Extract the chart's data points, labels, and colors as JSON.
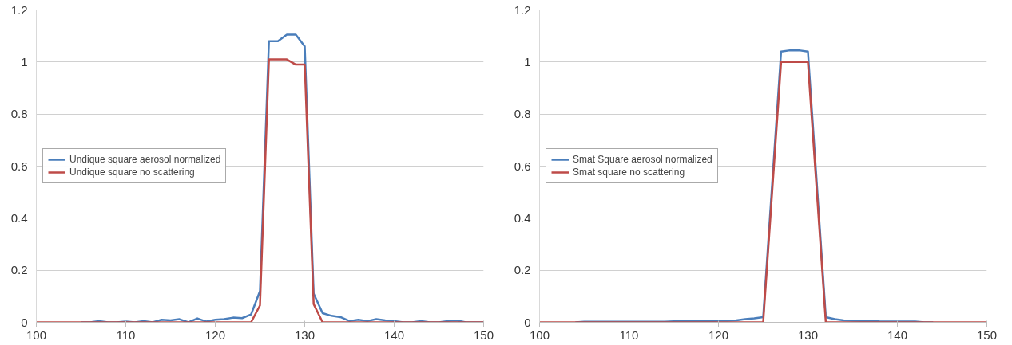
{
  "chart_data": [
    {
      "type": "line",
      "x": [
        100,
        101,
        102,
        103,
        104,
        105,
        106,
        107,
        108,
        109,
        110,
        111,
        112,
        113,
        114,
        115,
        116,
        117,
        118,
        119,
        120,
        121,
        122,
        123,
        124,
        125,
        126,
        127,
        128,
        129,
        130,
        131,
        132,
        133,
        134,
        135,
        136,
        137,
        138,
        139,
        140,
        141,
        142,
        143,
        144,
        145,
        146,
        147,
        148,
        149,
        150
      ],
      "xlim": [
        100,
        150
      ],
      "xticks": [
        100,
        110,
        120,
        130,
        140,
        150
      ],
      "ylim": [
        0,
        1.2
      ],
      "yticks": [
        0,
        0.2,
        0.4,
        0.6,
        0.8,
        1,
        1.2
      ],
      "grid": "y",
      "legend": "left",
      "series": [
        {
          "name": "Undique square aerosol normalized",
          "color": "#4a7ebb",
          "x": [
            105,
            106,
            107,
            108,
            109,
            110,
            111,
            112,
            113,
            114,
            115,
            116,
            117,
            118,
            119,
            120,
            121,
            122,
            123,
            124,
            125,
            126,
            127,
            128,
            129,
            130,
            131,
            132,
            133,
            134,
            135,
            136,
            137,
            138,
            139,
            140,
            141,
            142,
            143,
            144,
            145,
            146,
            147,
            148,
            149,
            150
          ],
          "values": [
            0,
            0,
            0.005,
            0,
            0,
            0.003,
            0,
            0.005,
            0,
            0.01,
            0.008,
            0.012,
            0,
            0.015,
            0.003,
            0.01,
            0.012,
            0.018,
            0.016,
            0.03,
            0.12,
            1.08,
            1.08,
            1.105,
            1.105,
            1.06,
            0.11,
            0.035,
            0.025,
            0.02,
            0.005,
            0.01,
            0.005,
            0.012,
            0.008,
            0.005,
            0,
            0,
            0.005,
            0,
            0,
            0.005,
            0.007,
            0,
            0,
            0
          ]
        },
        {
          "name": "Undique square no scattering",
          "color": "#be4b48",
          "values": [
            0,
            0,
            0,
            0,
            0,
            0,
            0,
            0,
            0,
            0,
            0,
            0,
            0,
            0,
            0,
            0,
            0,
            0,
            0,
            0,
            0,
            0,
            0,
            0,
            0,
            0.065,
            1.01,
            1.01,
            1.01,
            0.99,
            0.99,
            0.07,
            0,
            0,
            0,
            0,
            0,
            0,
            0,
            0,
            0,
            0,
            0,
            0,
            0,
            0,
            0,
            0,
            0,
            0,
            0
          ]
        }
      ]
    },
    {
      "type": "line",
      "x": [
        100,
        101,
        102,
        103,
        104,
        105,
        106,
        107,
        108,
        109,
        110,
        111,
        112,
        113,
        114,
        115,
        116,
        117,
        118,
        119,
        120,
        121,
        122,
        123,
        124,
        125,
        126,
        127,
        128,
        129,
        130,
        131,
        132,
        133,
        134,
        135,
        136,
        137,
        138,
        139,
        140,
        141,
        142,
        143,
        144,
        145,
        146,
        147,
        148,
        149,
        150
      ],
      "xlim": [
        100,
        150
      ],
      "xticks": [
        100,
        110,
        120,
        130,
        140,
        150
      ],
      "ylim": [
        0,
        1.2
      ],
      "yticks": [
        0,
        0.2,
        0.4,
        0.6,
        0.8,
        1,
        1.2
      ],
      "grid": "y",
      "legend": "left",
      "series": [
        {
          "name": "Smat Square aerosol normalized",
          "color": "#4a7ebb",
          "x": [
            104,
            105,
            106,
            107,
            108,
            109,
            110,
            111,
            112,
            113,
            114,
            115,
            116,
            117,
            118,
            119,
            120,
            121,
            122,
            123,
            124,
            125,
            126,
            127,
            128,
            129,
            130,
            131,
            132,
            133,
            134,
            135,
            136,
            137,
            138,
            139,
            140,
            141,
            142,
            143,
            144
          ],
          "values": [
            0,
            0.002,
            0.002,
            0.002,
            0.002,
            0.002,
            0.002,
            0.002,
            0.002,
            0.002,
            0.002,
            0.004,
            0.004,
            0.004,
            0.004,
            0.004,
            0.006,
            0.006,
            0.008,
            0.012,
            0.015,
            0.02,
            0.53,
            1.04,
            1.045,
            1.045,
            1.04,
            0.53,
            0.02,
            0.012,
            0.008,
            0.006,
            0.005,
            0.006,
            0.004,
            0.003,
            0.003,
            0.003,
            0.003,
            0,
            0
          ]
        },
        {
          "name": "Smat square no scattering",
          "color": "#be4b48",
          "values": [
            0,
            0,
            0,
            0,
            0,
            0,
            0,
            0,
            0,
            0,
            0,
            0,
            0,
            0,
            0,
            0,
            0,
            0,
            0,
            0,
            0,
            0,
            0,
            0,
            0,
            0,
            0.5,
            1,
            1,
            1,
            1,
            0.5,
            0,
            0,
            0,
            0,
            0,
            0,
            0,
            0,
            0,
            0,
            0,
            0,
            0,
            0,
            0,
            0,
            0,
            0,
            0
          ]
        }
      ]
    }
  ]
}
